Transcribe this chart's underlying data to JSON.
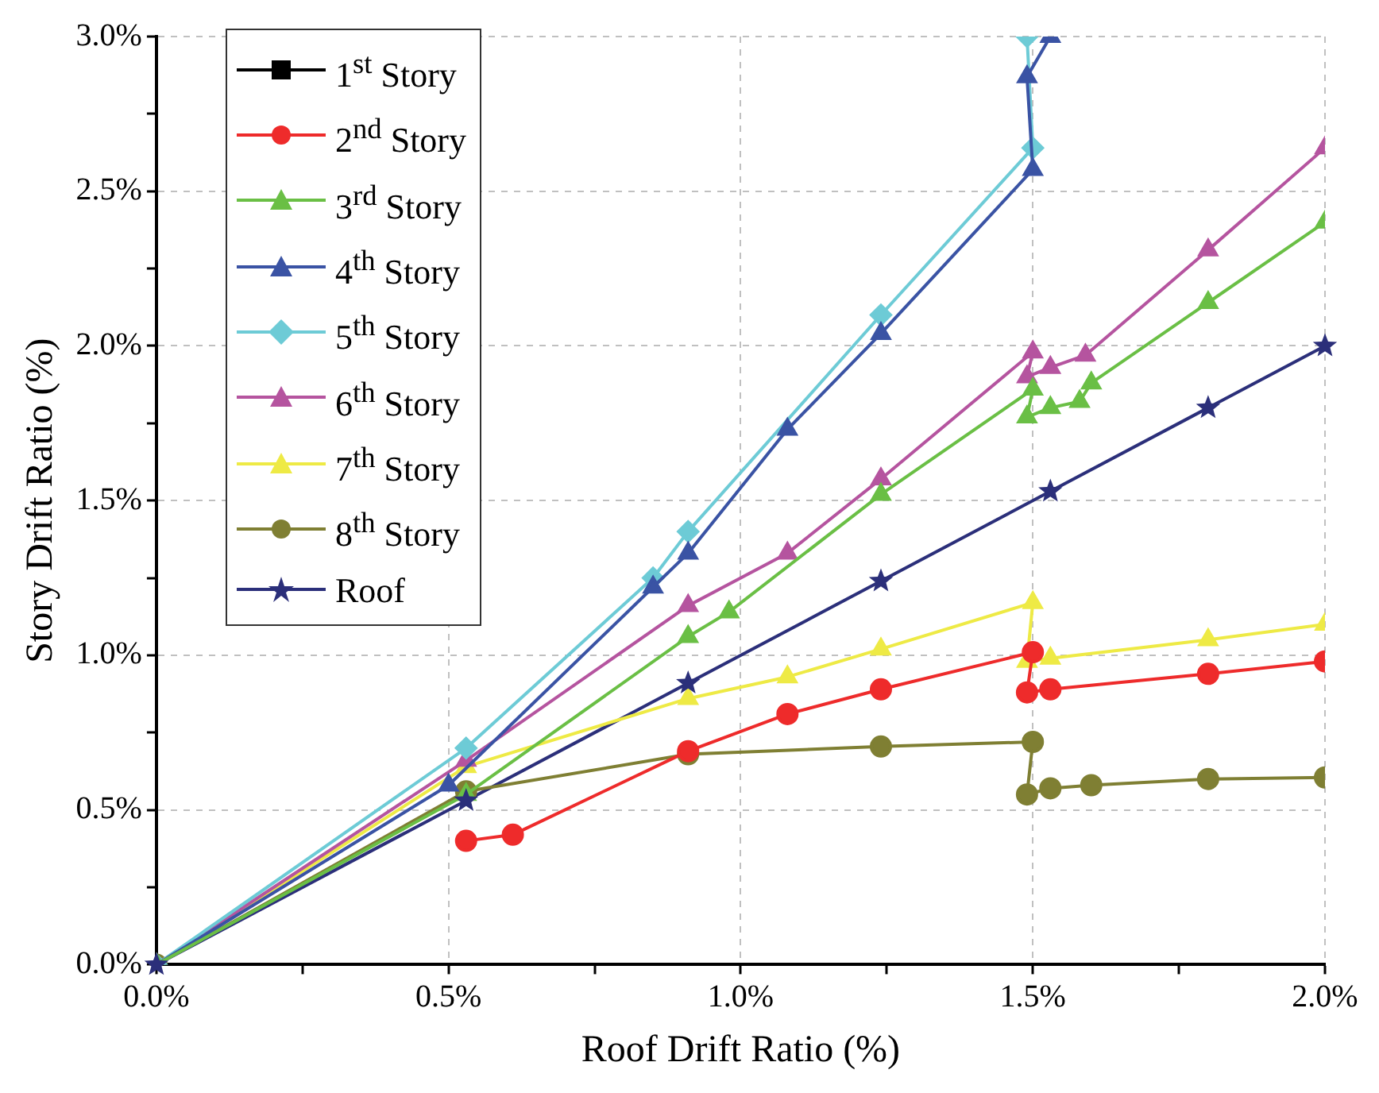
{
  "chart_data": {
    "type": "line",
    "xlabel": "Roof Drift Ratio (%)",
    "ylabel": "Story Drift Ratio (%)",
    "xlim": [
      0,
      2
    ],
    "ylim": [
      0,
      3
    ],
    "xticks": [
      {
        "value": 0,
        "label": "0.0%"
      },
      {
        "value": 0.25,
        "label": null
      },
      {
        "value": 0.5,
        "label": "0.5%"
      },
      {
        "value": 0.75,
        "label": null
      },
      {
        "value": 1,
        "label": "1.0%"
      },
      {
        "value": 1.25,
        "label": null
      },
      {
        "value": 1.5,
        "label": "1.5%"
      },
      {
        "value": 1.75,
        "label": null
      },
      {
        "value": 2,
        "label": "2.0%"
      }
    ],
    "yticks": [
      {
        "value": 0,
        "label": "0.0%"
      },
      {
        "value": 0.25,
        "label": null
      },
      {
        "value": 0.5,
        "label": "0.5%"
      },
      {
        "value": 0.75,
        "label": null
      },
      {
        "value": 1,
        "label": "1.0%"
      },
      {
        "value": 1.25,
        "label": null
      },
      {
        "value": 1.5,
        "label": "1.5%"
      },
      {
        "value": 1.75,
        "label": null
      },
      {
        "value": 2,
        "label": "2.0%"
      },
      {
        "value": 2.25,
        "label": null
      },
      {
        "value": 2.5,
        "label": "2.5%"
      },
      {
        "value": 2.75,
        "label": null
      },
      {
        "value": 3,
        "label": "3.0%"
      }
    ],
    "grid": true,
    "legend": "top left",
    "line_style": "solid",
    "series": [
      {
        "name": "1$^{st}$ Story",
        "color": "#000000",
        "marker": "square"
      },
      {
        "name": "2$^{nd}$ Story",
        "color": "#ee2b2b",
        "marker": "circle",
        "x": [
          0.53,
          0.61,
          0.91,
          1.08,
          1.24,
          1.5,
          1.49,
          1.53,
          1.8,
          2.0
        ],
        "values": [
          0.4,
          0.42,
          0.69,
          0.81,
          0.89,
          1.01,
          0.88,
          0.89,
          0.94,
          0.98
        ]
      },
      {
        "name": "3$^{rd}$ Story",
        "color": "#6abf45",
        "marker": "triangle",
        "x": [
          0,
          0.53,
          0.91,
          0.98,
          1.24,
          1.5,
          1.49,
          1.53,
          1.58,
          1.6,
          1.8,
          2.0
        ],
        "values": [
          0,
          0.55,
          1.06,
          1.14,
          1.52,
          1.86,
          1.77,
          1.8,
          1.82,
          1.88,
          2.14,
          2.4
        ]
      },
      {
        "name": "4$^{th}$ Story",
        "color": "#3a53a4",
        "marker": "triangle",
        "x": [
          0,
          0.5,
          0.85,
          0.91,
          1.08,
          1.24,
          1.5,
          1.49,
          1.53
        ],
        "values": [
          0,
          0.58,
          1.22,
          1.33,
          1.73,
          2.04,
          2.57,
          2.87,
          3.0
        ]
      },
      {
        "name": "5$^{th}$ Story",
        "color": "#6dcbd6",
        "marker": "diamond",
        "x": [
          0,
          0.53,
          0.85,
          0.91,
          1.24,
          1.5,
          1.49
        ],
        "values": [
          0,
          0.7,
          1.25,
          1.4,
          2.1,
          2.64,
          3.0
        ]
      },
      {
        "name": "6$^{th}$ Story",
        "color": "#b5549f",
        "marker": "triangle",
        "x": [
          0,
          0.53,
          0.91,
          1.08,
          1.24,
          1.5,
          1.49,
          1.53,
          1.59,
          1.8,
          2.0
        ],
        "values": [
          0,
          0.66,
          1.16,
          1.33,
          1.57,
          1.98,
          1.9,
          1.93,
          1.97,
          2.31,
          2.64
        ]
      },
      {
        "name": "7$^{th}$ Story",
        "color": "#eeea45",
        "marker": "triangle",
        "x": [
          0,
          0.53,
          0.91,
          1.08,
          1.24,
          1.5,
          1.49,
          1.53,
          1.8,
          2.0
        ],
        "values": [
          0,
          0.64,
          0.86,
          0.93,
          1.02,
          1.17,
          0.98,
          0.99,
          1.05,
          1.1
        ]
      },
      {
        "name": "8$^{th}$ Story",
        "color": "#7f7f33",
        "marker": "circle",
        "x": [
          0,
          0.53,
          0.91,
          1.24,
          1.5,
          1.49,
          1.53,
          1.6,
          1.8,
          2.0
        ],
        "values": [
          0,
          0.56,
          0.68,
          0.705,
          0.72,
          0.55,
          0.57,
          0.58,
          0.6,
          0.605
        ]
      },
      {
        "name": "Roof",
        "color": "#2b2f7a",
        "marker": "star",
        "x": [
          0,
          0.53,
          0.91,
          1.24,
          1.53,
          1.8,
          2.0
        ],
        "values": [
          0,
          0.53,
          0.91,
          1.24,
          1.53,
          1.8,
          2.0
        ]
      }
    ]
  }
}
